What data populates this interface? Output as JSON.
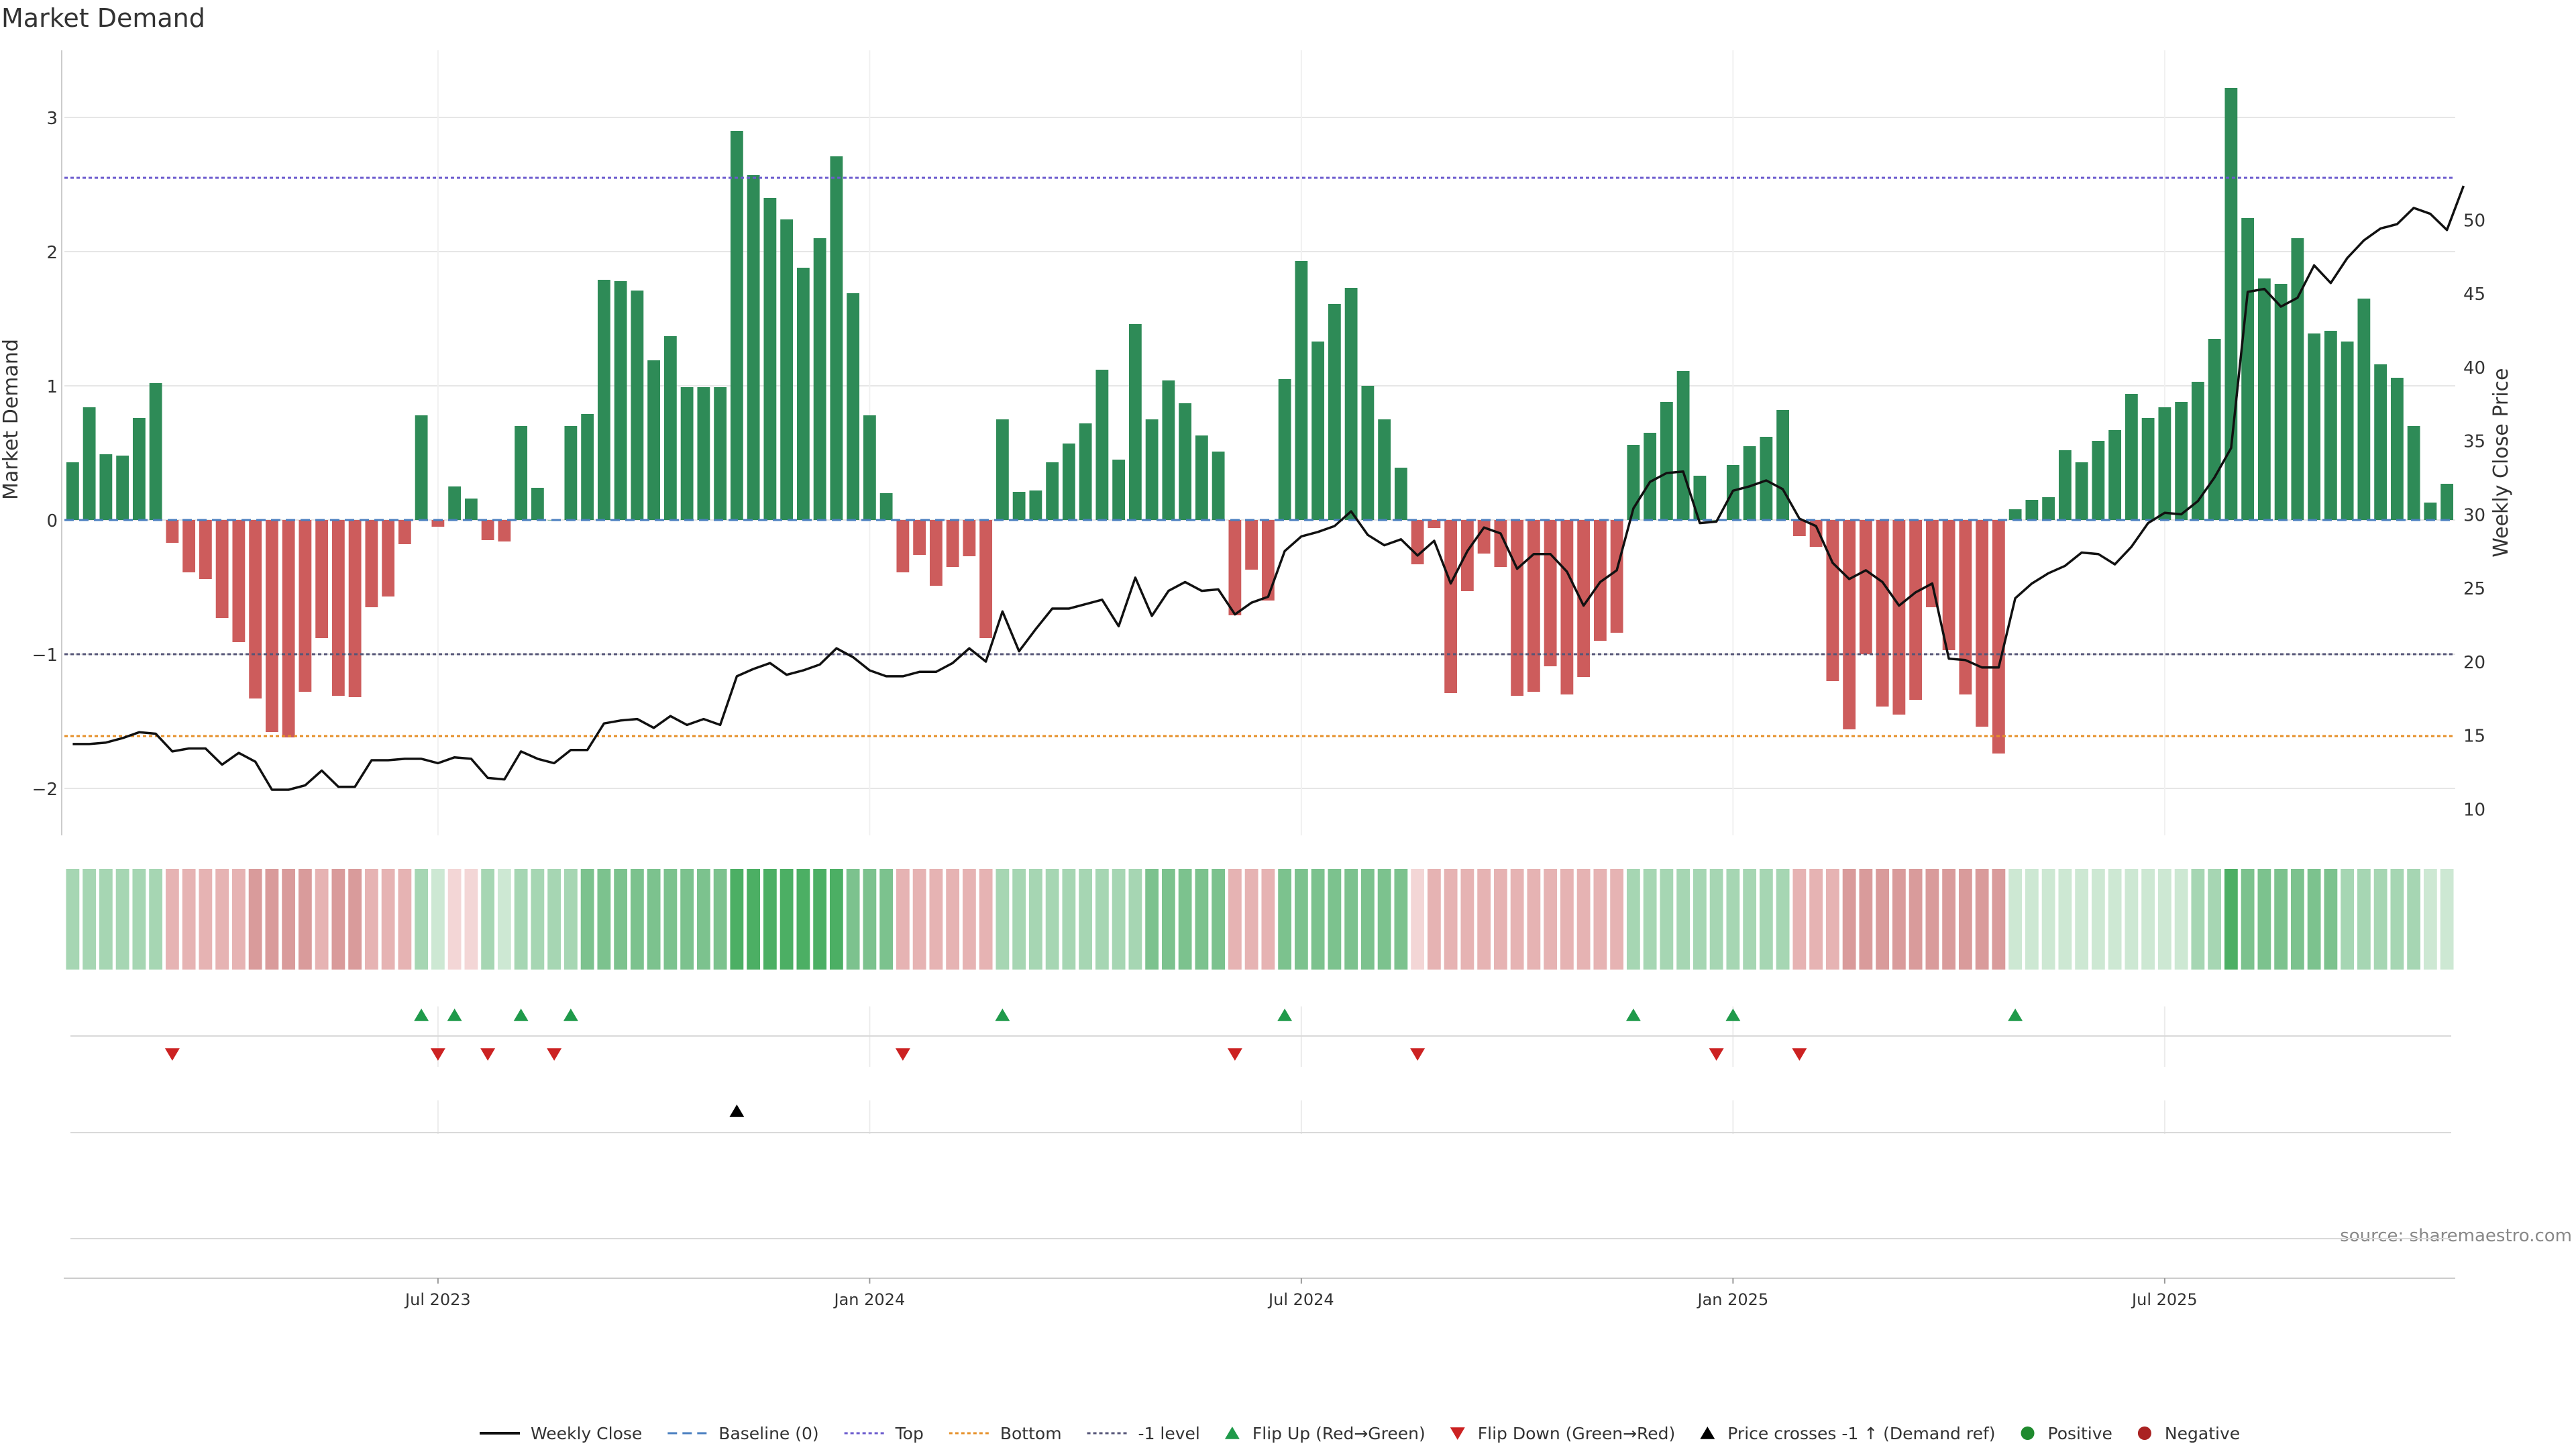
{
  "chart_data": {
    "type": "bar",
    "title": "Market Demand",
    "ylabel": "Market Demand",
    "y2label": "Weekly Close Price",
    "source": "source: sharemaestro.com",
    "ylim": [
      -2.35,
      3.5
    ],
    "y2lim": [
      8.2,
      61.5
    ],
    "yticks": [
      {
        "v": -2,
        "label": "−2"
      },
      {
        "v": -1,
        "label": "−1"
      },
      {
        "v": 0,
        "label": "0"
      },
      {
        "v": 1,
        "label": "1"
      },
      {
        "v": 2,
        "label": "2"
      },
      {
        "v": 3,
        "label": "3"
      }
    ],
    "y2ticks": [
      10,
      15,
      20,
      25,
      30,
      35,
      40,
      45,
      50
    ],
    "xticks": [
      {
        "i": 22,
        "label": "Jul 2023"
      },
      {
        "i": 48,
        "label": "Jan 2024"
      },
      {
        "i": 74,
        "label": "Jul 2024"
      },
      {
        "i": 100,
        "label": "Jan 2025"
      },
      {
        "i": 126,
        "label": "Jul 2025"
      }
    ],
    "reference_lines": [
      {
        "name": "Top",
        "value": 2.55,
        "color": "#6a5acd",
        "dash": "5,4"
      },
      {
        "name": "Bottom",
        "value": -1.61,
        "color": "#e6902a",
        "dash": "5,4"
      },
      {
        "name": "-1 level",
        "value": -1.0,
        "color": "#555577",
        "dash": "5,4"
      },
      {
        "name": "Baseline (0)",
        "value": 0,
        "color": "#4a7fc0",
        "dash": "14,8"
      }
    ],
    "series": [
      {
        "name": "Market Demand",
        "values": [
          0.43,
          0.84,
          0.49,
          0.48,
          0.76,
          1.02,
          -0.17,
          -0.39,
          -0.44,
          -0.73,
          -0.91,
          -1.33,
          -1.58,
          -1.62,
          -1.28,
          -0.88,
          -1.31,
          -1.32,
          -0.65,
          -0.57,
          -0.18,
          0.78,
          -0.05,
          0.25,
          0.16,
          -0.15,
          -0.16,
          0.7,
          0.24,
          0.0,
          0.7,
          0.79,
          1.79,
          1.78,
          1.71,
          1.19,
          1.37,
          0.99,
          0.99,
          0.99,
          2.9,
          2.57,
          2.4,
          2.24,
          1.88,
          2.1,
          2.71,
          1.69,
          0.78,
          0.2,
          -0.39,
          -0.26,
          -0.49,
          -0.35,
          -0.27,
          -0.88,
          0.75,
          0.21,
          0.22,
          0.43,
          0.57,
          0.72,
          1.12,
          0.45,
          1.46,
          0.75,
          1.04,
          0.87,
          0.63,
          0.51,
          -0.71,
          -0.37,
          -0.6,
          1.05,
          1.93,
          1.33,
          1.61,
          1.73,
          1.0,
          0.75,
          0.39,
          -0.33,
          -0.06,
          -1.29,
          -0.53,
          -0.25,
          -0.35,
          -1.31,
          -1.28,
          -1.09,
          -1.3,
          -1.17,
          -0.9,
          -0.84,
          0.56,
          0.65,
          0.88,
          1.11,
          0.33,
          0.0,
          0.41,
          0.55,
          0.62,
          0.82,
          -0.12,
          -0.2,
          -1.2,
          -1.56,
          -1.0,
          -1.39,
          -1.45,
          -1.34,
          -0.65,
          -0.97,
          -1.3,
          -1.54,
          -1.74,
          0.08,
          0.15,
          0.17,
          0.52,
          0.43,
          0.59,
          0.67,
          0.94,
          0.76,
          0.84,
          0.88,
          1.03,
          1.35,
          3.22,
          2.25,
          1.8,
          1.76,
          2.1,
          1.39,
          1.41,
          1.33,
          1.65,
          1.16,
          1.06,
          0.7,
          0.13,
          0.27
        ]
      },
      {
        "name": "Weekly Close",
        "values": [
          14.4,
          14.4,
          14.5,
          14.8,
          15.2,
          15.1,
          13.9,
          14.1,
          14.1,
          13.0,
          13.8,
          13.2,
          11.3,
          11.3,
          11.6,
          12.6,
          11.5,
          11.5,
          13.3,
          13.3,
          13.4,
          13.4,
          13.1,
          13.5,
          13.4,
          12.1,
          12.0,
          13.9,
          13.4,
          13.1,
          14.0,
          14.0,
          15.8,
          16.0,
          16.1,
          15.5,
          16.3,
          15.7,
          16.1,
          15.7,
          19.0,
          19.5,
          19.9,
          19.1,
          19.4,
          19.8,
          20.9,
          20.3,
          19.4,
          19.0,
          19.0,
          19.3,
          19.3,
          19.9,
          20.9,
          20.0,
          23.4,
          20.7,
          22.2,
          23.6,
          23.6,
          23.9,
          24.2,
          22.4,
          25.7,
          23.1,
          24.8,
          25.4,
          24.8,
          24.9,
          23.2,
          24.0,
          24.4,
          27.5,
          28.5,
          28.8,
          29.2,
          30.2,
          28.6,
          27.9,
          28.3,
          27.2,
          28.2,
          25.3,
          27.5,
          29.1,
          28.7,
          26.3,
          27.3,
          27.3,
          26.1,
          23.8,
          25.4,
          26.2,
          30.4,
          32.2,
          32.8,
          32.9,
          29.4,
          29.5,
          31.6,
          31.9,
          32.3,
          31.7,
          29.7,
          29.2,
          26.7,
          25.6,
          26.2,
          25.4,
          23.8,
          24.7,
          25.3,
          20.2,
          20.1,
          19.6,
          19.6,
          24.3,
          25.3,
          26.0,
          26.5,
          27.4,
          27.3,
          26.6,
          27.8,
          29.4,
          30.1,
          30.0,
          30.9,
          32.5,
          34.5,
          45.1,
          45.3,
          44.1,
          44.7,
          46.9,
          45.7,
          47.4,
          48.6,
          49.4,
          49.7,
          50.8,
          50.4,
          49.3,
          52.3
        ]
      }
    ],
    "strip_levels": [
      [
        1,
        1
      ],
      [
        1,
        1
      ],
      [
        1,
        1
      ],
      [
        1,
        1
      ],
      [
        1,
        1
      ],
      [
        1,
        1
      ],
      [
        -1,
        1
      ],
      [
        -1,
        1
      ],
      [
        -1,
        1
      ],
      [
        -1,
        1
      ],
      [
        -1,
        1
      ],
      [
        -1,
        2
      ],
      [
        -1,
        2
      ],
      [
        -1,
        2
      ],
      [
        -1,
        2
      ],
      [
        -1,
        1
      ],
      [
        -1,
        2
      ],
      [
        -1,
        2
      ],
      [
        -1,
        1
      ],
      [
        -1,
        1
      ],
      [
        -1,
        1
      ],
      [
        1,
        1
      ],
      [
        1,
        0
      ],
      [
        -1,
        0
      ],
      [
        -1,
        0
      ],
      [
        1,
        1
      ],
      [
        1,
        0
      ],
      [
        1,
        1
      ],
      [
        1,
        1
      ],
      [
        1,
        1
      ],
      [
        1,
        1
      ],
      [
        1,
        2
      ],
      [
        1,
        2
      ],
      [
        1,
        2
      ],
      [
        1,
        2
      ],
      [
        1,
        2
      ],
      [
        1,
        2
      ],
      [
        1,
        2
      ],
      [
        1,
        2
      ],
      [
        1,
        2
      ],
      [
        1,
        3
      ],
      [
        1,
        3
      ],
      [
        1,
        3
      ],
      [
        1,
        3
      ],
      [
        1,
        3
      ],
      [
        1,
        3
      ],
      [
        1,
        3
      ],
      [
        1,
        2
      ],
      [
        1,
        2
      ],
      [
        1,
        2
      ],
      [
        -1,
        1
      ],
      [
        -1,
        1
      ],
      [
        -1,
        1
      ],
      [
        -1,
        1
      ],
      [
        -1,
        1
      ],
      [
        -1,
        1
      ],
      [
        1,
        1
      ],
      [
        1,
        1
      ],
      [
        1,
        1
      ],
      [
        1,
        1
      ],
      [
        1,
        1
      ],
      [
        1,
        1
      ],
      [
        1,
        1
      ],
      [
        1,
        1
      ],
      [
        1,
        1
      ],
      [
        1,
        2
      ],
      [
        1,
        2
      ],
      [
        1,
        2
      ],
      [
        1,
        2
      ],
      [
        1,
        2
      ],
      [
        -1,
        1
      ],
      [
        -1,
        1
      ],
      [
        -1,
        1
      ],
      [
        1,
        2
      ],
      [
        1,
        2
      ],
      [
        1,
        2
      ],
      [
        1,
        2
      ],
      [
        1,
        2
      ],
      [
        1,
        2
      ],
      [
        1,
        2
      ],
      [
        1,
        2
      ],
      [
        -1,
        0
      ],
      [
        -1,
        1
      ],
      [
        -1,
        1
      ],
      [
        -1,
        1
      ],
      [
        -1,
        1
      ],
      [
        -1,
        1
      ],
      [
        -1,
        1
      ],
      [
        -1,
        1
      ],
      [
        -1,
        1
      ],
      [
        -1,
        1
      ],
      [
        -1,
        1
      ],
      [
        -1,
        1
      ],
      [
        -1,
        1
      ],
      [
        1,
        1
      ],
      [
        1,
        1
      ],
      [
        1,
        1
      ],
      [
        1,
        1
      ],
      [
        1,
        1
      ],
      [
        1,
        1
      ],
      [
        1,
        1
      ],
      [
        1,
        1
      ],
      [
        1,
        1
      ],
      [
        1,
        1
      ],
      [
        -1,
        1
      ],
      [
        -1,
        1
      ],
      [
        -1,
        1
      ],
      [
        -1,
        2
      ],
      [
        -1,
        2
      ],
      [
        -1,
        2
      ],
      [
        -1,
        2
      ],
      [
        -1,
        2
      ],
      [
        -1,
        2
      ],
      [
        -1,
        2
      ],
      [
        -1,
        2
      ],
      [
        -1,
        2
      ],
      [
        -1,
        2
      ],
      [
        1,
        0
      ],
      [
        1,
        0
      ],
      [
        1,
        0
      ],
      [
        1,
        0
      ],
      [
        1,
        0
      ],
      [
        1,
        0
      ],
      [
        1,
        0
      ],
      [
        1,
        0
      ],
      [
        1,
        0
      ],
      [
        1,
        0
      ],
      [
        1,
        0
      ],
      [
        1,
        1
      ],
      [
        1,
        1
      ],
      [
        1,
        3
      ],
      [
        1,
        2
      ],
      [
        1,
        2
      ],
      [
        1,
        2
      ],
      [
        1,
        2
      ],
      [
        1,
        2
      ],
      [
        1,
        2
      ],
      [
        1,
        1
      ],
      [
        1,
        1
      ],
      [
        1,
        1
      ],
      [
        1,
        1
      ],
      [
        1,
        1
      ],
      [
        1,
        0
      ],
      [
        1,
        0
      ]
    ],
    "flip_up": [
      21,
      23,
      27,
      30,
      56,
      73,
      94,
      100,
      117
    ],
    "flip_down": [
      6,
      22,
      25,
      29,
      50,
      70,
      81,
      99,
      104
    ],
    "price_cross": [
      40
    ],
    "legend": [
      {
        "label": "Weekly Close",
        "kind": "line",
        "color": "#111111"
      },
      {
        "label": "Baseline (0)",
        "kind": "dash",
        "color": "#4a7fc0"
      },
      {
        "label": "Top",
        "kind": "dot",
        "color": "#6a5acd"
      },
      {
        "label": "Bottom",
        "kind": "dot",
        "color": "#e6902a"
      },
      {
        "label": "-1 level",
        "kind": "dot",
        "color": "#555577"
      },
      {
        "label": "Flip Up (Red→Green)",
        "kind": "tri-up",
        "color": "#1f9a4a"
      },
      {
        "label": "Flip Down (Green→Red)",
        "kind": "tri-down",
        "color": "#cc2222"
      },
      {
        "label": "Price crosses -1 ↑ (Demand ref)",
        "kind": "tri-up",
        "color": "#000000"
      },
      {
        "label": "Positive",
        "kind": "circle",
        "color": "#1f8a2e"
      },
      {
        "label": "Negative",
        "kind": "circle",
        "color": "#aa2222"
      }
    ],
    "colors": {
      "positive": "#2e8b57",
      "negative": "#cd5c5c",
      "price": "#111111",
      "grid": "#e6e6e6",
      "strip_green": [
        "#cde8d3",
        "#a6d6b3",
        "#7cc28e",
        "#4caf64"
      ],
      "strip_red": [
        "#f3d6d6",
        "#e6b3b3",
        "#d99b9b",
        "#cc8585"
      ]
    }
  }
}
